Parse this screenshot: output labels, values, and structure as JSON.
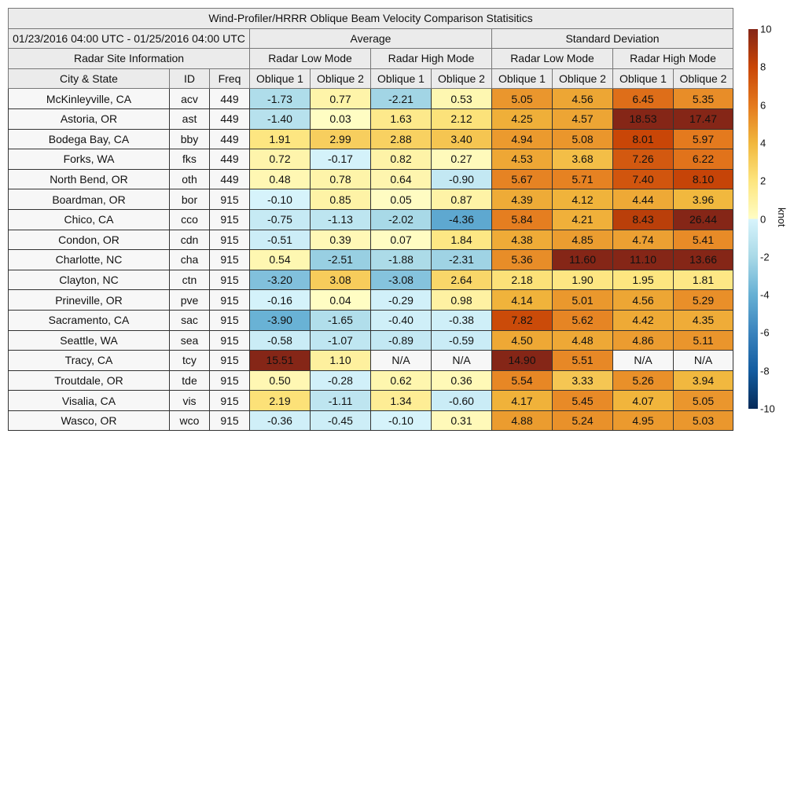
{
  "chart_data": {
    "type": "heatmap",
    "title": "Wind-Profiler/HRRR Oblique Beam Velocity Comparison Statisitics",
    "period": "01/23/2016 04:00 UTC - 01/25/2016 04:00 UTC",
    "groups": [
      "Average",
      "Standard Deviation"
    ],
    "site_info_label": "Radar Site Information",
    "modes": [
      "Radar Low Mode",
      "Radar High Mode",
      "Radar Low Mode",
      "Radar High Mode"
    ],
    "columns": [
      "City & State",
      "ID",
      "Freq",
      "Oblique 1",
      "Oblique 2",
      "Oblique 1",
      "Oblique 2",
      "Oblique 1",
      "Oblique 2",
      "Oblique 1",
      "Oblique 2"
    ],
    "rows": [
      [
        "McKinleyville, CA",
        "acv",
        "449",
        "-1.73",
        "0.77",
        "-2.21",
        "0.53",
        "5.05",
        "4.56",
        "6.45",
        "5.35"
      ],
      [
        "Astoria, OR",
        "ast",
        "449",
        "-1.40",
        "0.03",
        "1.63",
        "2.12",
        "4.25",
        "4.57",
        "18.53",
        "17.47"
      ],
      [
        "Bodega Bay, CA",
        "bby",
        "449",
        "1.91",
        "2.99",
        "2.88",
        "3.40",
        "4.94",
        "5.08",
        "8.01",
        "5.97"
      ],
      [
        "Forks, WA",
        "fks",
        "449",
        "0.72",
        "-0.17",
        "0.82",
        "0.27",
        "4.53",
        "3.68",
        "7.26",
        "6.22"
      ],
      [
        "North Bend, OR",
        "oth",
        "449",
        "0.48",
        "0.78",
        "0.64",
        "-0.90",
        "5.67",
        "5.71",
        "7.40",
        "8.10"
      ],
      [
        "Boardman, OR",
        "bor",
        "915",
        "-0.10",
        "0.85",
        "0.05",
        "0.87",
        "4.39",
        "4.12",
        "4.44",
        "3.96"
      ],
      [
        "Chico, CA",
        "cco",
        "915",
        "-0.75",
        "-1.13",
        "-2.02",
        "-4.36",
        "5.84",
        "4.21",
        "8.43",
        "26.44"
      ],
      [
        "Condon, OR",
        "cdn",
        "915",
        "-0.51",
        "0.39",
        "0.07",
        "1.84",
        "4.38",
        "4.85",
        "4.74",
        "5.41"
      ],
      [
        "Charlotte, NC",
        "cha",
        "915",
        "0.54",
        "-2.51",
        "-1.88",
        "-2.31",
        "5.36",
        "11.60",
        "11.10",
        "13.66"
      ],
      [
        "Clayton, NC",
        "ctn",
        "915",
        "-3.20",
        "3.08",
        "-3.08",
        "2.64",
        "2.18",
        "1.90",
        "1.95",
        "1.81"
      ],
      [
        "Prineville, OR",
        "pve",
        "915",
        "-0.16",
        "0.04",
        "-0.29",
        "0.98",
        "4.14",
        "5.01",
        "4.56",
        "5.29"
      ],
      [
        "Sacramento, CA",
        "sac",
        "915",
        "-3.90",
        "-1.65",
        "-0.40",
        "-0.38",
        "7.82",
        "5.62",
        "4.42",
        "4.35"
      ],
      [
        "Seattle, WA",
        "sea",
        "915",
        "-0.58",
        "-1.07",
        "-0.89",
        "-0.59",
        "4.50",
        "4.48",
        "4.86",
        "5.11"
      ],
      [
        "Tracy, CA",
        "tcy",
        "915",
        "15.51",
        "1.10",
        "N/A",
        "N/A",
        "14.90",
        "5.51",
        "N/A",
        "N/A"
      ],
      [
        "Troutdale, OR",
        "tde",
        "915",
        "0.50",
        "-0.28",
        "0.62",
        "0.36",
        "5.54",
        "3.33",
        "5.26",
        "3.94"
      ],
      [
        "Visalia, CA",
        "vis",
        "915",
        "2.19",
        "-1.11",
        "1.34",
        "-0.60",
        "4.17",
        "5.45",
        "4.07",
        "5.05"
      ],
      [
        "Wasco, OR",
        "wco",
        "915",
        "-0.36",
        "-0.45",
        "-0.10",
        "0.31",
        "4.88",
        "5.24",
        "4.95",
        "5.03"
      ]
    ],
    "colorbar": {
      "range": [
        -10,
        10
      ],
      "ticks": [
        "10",
        "8",
        "6",
        "4",
        "2",
        "0",
        "-2",
        "-4",
        "-6",
        "-8",
        "-10"
      ],
      "unit": "knot",
      "positive_colors": [
        "#fffdc4",
        "#fde57e",
        "#f1b73d",
        "#e4791e",
        "#c94607",
        "#852617"
      ],
      "negative_colors": [
        "#d8f4fc",
        "#a9d9e7",
        "#66b0d4",
        "#3a83bd",
        "#135ca0",
        "#062b59"
      ],
      "na_color": "#f7f7f7"
    }
  }
}
